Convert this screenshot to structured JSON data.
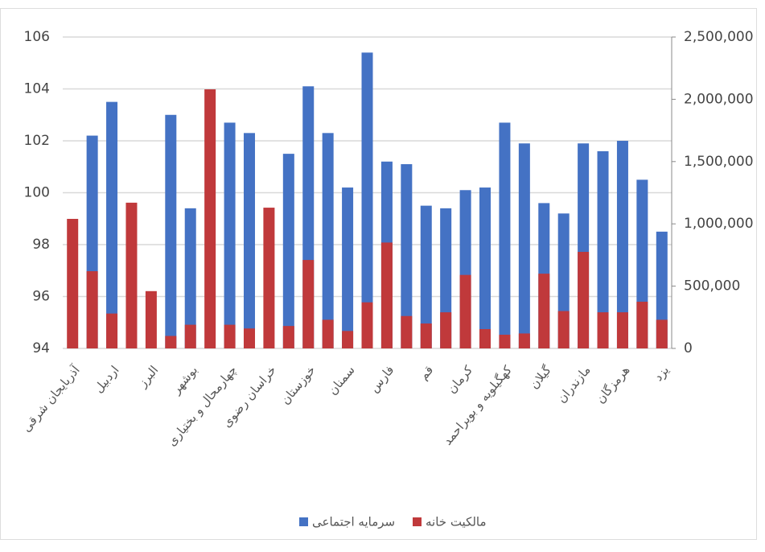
{
  "chart_data": {
    "type": "bar",
    "categories": [
      "آذربایجان شرقی",
      null,
      "اردبیل",
      null,
      "البرز",
      null,
      "بوشهر",
      null,
      "چهارمحال و بختیاری",
      null,
      "خراسان رضوی",
      null,
      "خوزستان",
      null,
      "سمنان",
      null,
      "فارس",
      null,
      "قم",
      null,
      "کرمان",
      null,
      "کهگیلویه و بویراحمد",
      null,
      "گیلان",
      null,
      "مازندران",
      null,
      "هرمزگان",
      null,
      "یزد"
    ],
    "series": [
      {
        "name": "سرمایه اجتماعی",
        "color": "#4472c4",
        "axis": "y",
        "values": [
          null,
          102.2,
          103.5,
          null,
          null,
          103.0,
          99.4,
          null,
          102.7,
          102.3,
          null,
          101.5,
          104.1,
          102.3,
          100.2,
          105.4,
          101.2,
          101.1,
          99.5,
          99.4,
          100.1,
          100.2,
          102.7,
          101.9,
          99.6,
          99.2,
          101.9,
          101.6,
          102.0,
          100.5,
          98.5
        ]
      },
      {
        "name": "مالکیت خانه",
        "color": "#c0393b",
        "axis": "y2",
        "values": [
          1040000,
          620000,
          280000,
          1170000,
          460000,
          100000,
          190000,
          2080000,
          190000,
          160000,
          1130000,
          180000,
          710000,
          230000,
          140000,
          370000,
          850000,
          260000,
          200000,
          290000,
          590000,
          155000,
          110000,
          120000,
          600000,
          300000,
          775000,
          290000,
          290000,
          375000,
          230000
        ]
      }
    ],
    "ylim": [
      94,
      106
    ],
    "yticks": [
      94,
      96,
      98,
      100,
      102,
      104,
      106
    ],
    "y2lim": [
      0,
      2500000
    ],
    "y2ticks": [
      0,
      {
        "value": 500000,
        "label": "500,000"
      },
      {
        "value": 1000000,
        "label": "1,000,000"
      },
      {
        "value": 1500000,
        "label": "1,500,000"
      },
      {
        "value": 2000000,
        "label": "2,000,000"
      },
      {
        "value": 2500000,
        "label": "2,500,000"
      }
    ],
    "grid": true
  }
}
